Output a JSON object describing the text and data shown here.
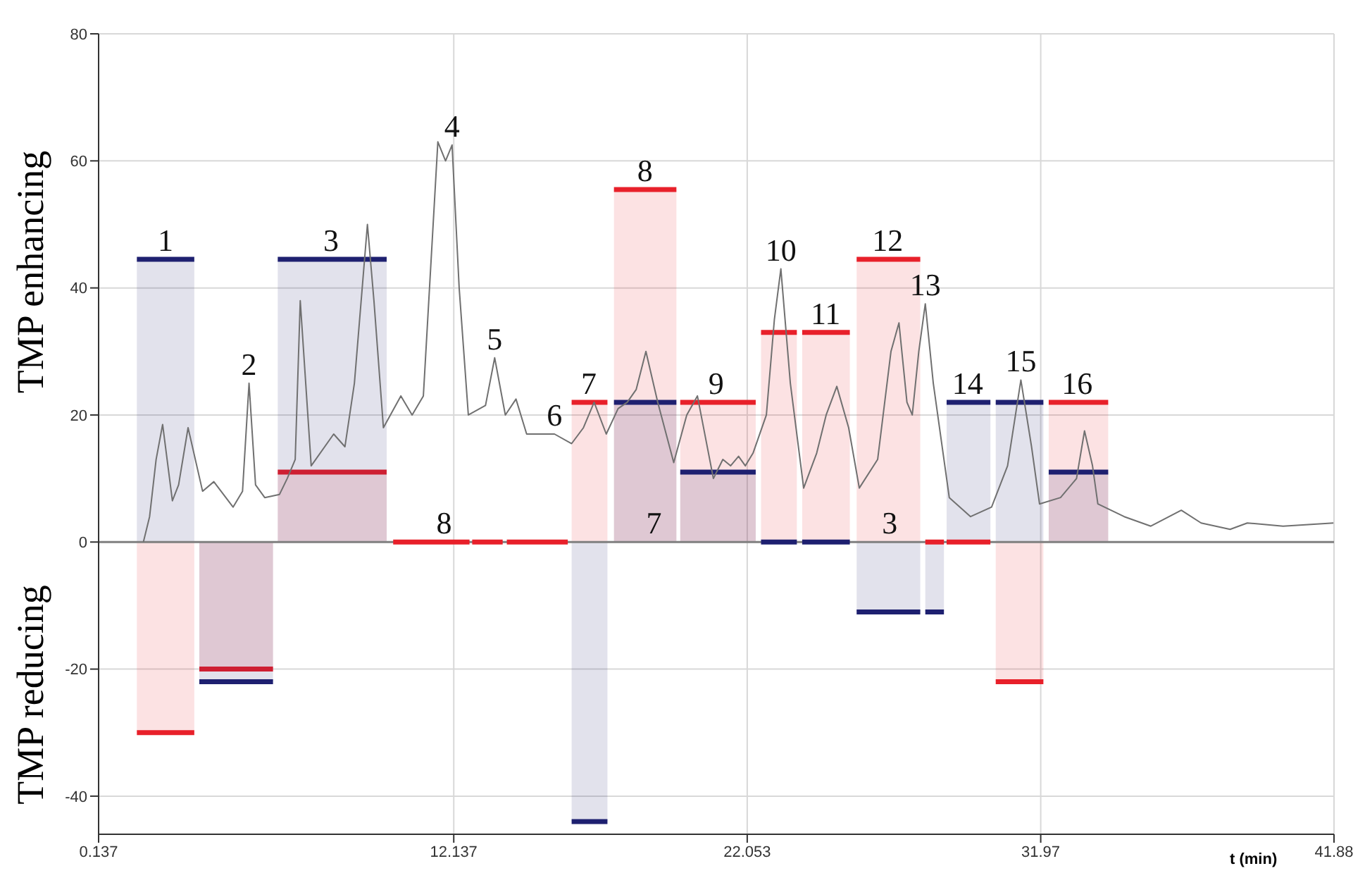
{
  "chart_data": {
    "type": "line",
    "xlabel": "t (min)",
    "ylabel": "TMP enhancing",
    "xlim": [
      0.137,
      41.88
    ],
    "xticks": [
      0.137,
      12.137,
      22.053,
      31.97,
      41.88
    ],
    "ylim": [
      -46,
      80
    ],
    "yticks": [
      -40,
      -20,
      0,
      20,
      40,
      60,
      80
    ],
    "grid": true,
    "legend": false,
    "marker": "none",
    "ref_lines": [
      {
        "axis": "y",
        "value": 0,
        "color": "#808080"
      }
    ],
    "series": [
      {
        "type": "line",
        "color": "#707070",
        "x": [
          1.65,
          1.86,
          2.08,
          2.3,
          2.63,
          2.84,
          3.16,
          3.65,
          4.03,
          4.68,
          5.0,
          5.22,
          5.44,
          5.75,
          6.25,
          6.51,
          6.78,
          6.95,
          7.32,
          8.08,
          8.46,
          8.78,
          9.22,
          9.44,
          9.76,
          10.35,
          10.73,
          11.11,
          11.6,
          11.86,
          12.08,
          12.32,
          12.63,
          13.21,
          13.52,
          13.88,
          14.24,
          14.6,
          15.54,
          16.12,
          16.52,
          16.88,
          17.29,
          17.69,
          18.0,
          18.3,
          18.63,
          19.03,
          19.57,
          20.01,
          20.37,
          20.91,
          21.23,
          21.49,
          21.76,
          21.99,
          22.25,
          22.7,
          22.97,
          23.19,
          23.51,
          23.96,
          24.4,
          24.72,
          25.08,
          25.48,
          25.84,
          26.46,
          26.91,
          27.18,
          27.45,
          27.63,
          27.85,
          28.07,
          28.34,
          28.88,
          29.6,
          30.31,
          30.85,
          31.3,
          31.66,
          31.93,
          32.64,
          33.18,
          33.45,
          33.72,
          33.9,
          34.79,
          35.69,
          36.72,
          37.39,
          38.37,
          38.95,
          40.16,
          41.86
        ],
        "values": [
          0,
          4,
          13,
          18.5,
          6.5,
          9,
          18,
          8,
          9.5,
          5.5,
          8,
          25,
          9,
          7,
          7.5,
          10,
          13,
          38,
          12,
          17,
          15,
          25,
          50,
          38,
          18,
          23,
          20,
          23,
          63,
          60,
          62.5,
          40,
          20,
          21.5,
          29,
          20,
          22.5,
          17,
          17,
          15.5,
          18,
          22,
          17,
          21,
          22,
          24,
          30,
          22,
          12.5,
          20,
          23,
          10,
          13,
          12,
          13.5,
          12,
          14,
          20,
          35,
          43,
          25,
          8.5,
          14,
          20,
          24.5,
          18,
          8.5,
          13,
          30,
          34.5,
          22,
          20,
          30,
          37.5,
          25,
          7,
          4,
          5.5,
          12,
          25.5,
          15,
          6,
          7,
          10,
          17.5,
          12,
          6,
          4,
          2.5,
          5,
          3,
          2,
          3,
          2.5,
          3
        ]
      },
      {
        "type": "area",
        "color": "#e8202a",
        "x": [
          1.43,
          3.37,
          3.46,
          3.54,
          6.03,
          6.11,
          6.19,
          9.87,
          9.98,
          16.12,
          17.33,
          17.44,
          17.55,
          19.66,
          19.72,
          19.79,
          22.34,
          22.43,
          22.52,
          23.73,
          23.82,
          23.91,
          25.52,
          25.63,
          25.75,
          27.9,
          27.98,
          30.45,
          32.06,
          32.15,
          32.24,
          34.25
        ],
        "values": [
          -30,
          -30,
          null,
          -20,
          -20,
          null,
          11,
          11,
          null,
          22,
          22,
          null,
          55.5,
          55.5,
          null,
          22,
          22,
          null,
          33,
          33,
          null,
          33,
          33,
          null,
          44.5,
          44.5,
          null,
          -22,
          -22,
          null,
          22,
          22
        ]
      },
      {
        "type": "area",
        "color": "#1e2070",
        "x": [
          1.43,
          3.37,
          3.46,
          3.54,
          6.03,
          6.11,
          6.19,
          9.87,
          13.0,
          16.12,
          17.33,
          17.44,
          17.55,
          19.66,
          19.72,
          19.79,
          22.34,
          22.43,
          25.75,
          27.9,
          27.98,
          28.07,
          28.7,
          28.74,
          28.79,
          30.27,
          30.36,
          30.45,
          32.06,
          32.15,
          32.24,
          34.25
        ],
        "values": [
          44.5,
          44.5,
          null,
          -22,
          -22,
          null,
          44.5,
          44.5,
          null,
          -44,
          -44,
          null,
          22,
          22,
          null,
          11,
          11,
          null,
          -11,
          -11,
          null,
          -11,
          -11,
          null,
          22,
          22,
          null,
          22,
          22,
          null,
          11,
          11
        ]
      },
      {
        "type": "step",
        "color": "#e8202a",
        "x": [
          10.09,
          12.67,
          12.71,
          12.76,
          13.79,
          13.86,
          13.93,
          15.99,
          16.05,
          28.07,
          28.7,
          28.74,
          28.79,
          30.27
        ],
        "values": [
          0,
          0,
          null,
          0,
          0,
          null,
          0,
          0,
          null,
          0,
          0,
          null,
          0,
          0
        ]
      },
      {
        "type": "step",
        "color": "#1e2070",
        "x": [
          22.52,
          23.73,
          23.82,
          23.91,
          25.52
        ],
        "values": [
          0,
          0,
          null,
          0,
          0
        ]
      }
    ],
    "annotations": [
      "TMP reducing",
      {
        "text": "1",
        "x": 2.4,
        "y": 44.5
      },
      {
        "text": "2",
        "x": 5.22,
        "y": 25
      },
      {
        "text": "3",
        "x": 7.99,
        "y": 44.5
      },
      {
        "text": "4",
        "x": 12.08,
        "y": 62.5
      },
      {
        "text": "5",
        "x": 13.52,
        "y": 29
      },
      {
        "text": "6",
        "x": 15.54,
        "y": 17
      },
      {
        "text": "7",
        "x": 16.7,
        "y": 22
      },
      {
        "text": "8",
        "x": 18.6,
        "y": 55.5
      },
      {
        "text": "9",
        "x": 21.0,
        "y": 22
      },
      {
        "text": "10",
        "x": 23.19,
        "y": 43
      },
      {
        "text": "11",
        "x": 24.7,
        "y": 33
      },
      {
        "text": "12",
        "x": 26.8,
        "y": 44.5
      },
      {
        "text": "13",
        "x": 28.07,
        "y": 37.5
      },
      {
        "text": "14",
        "x": 29.5,
        "y": 22
      },
      {
        "text": "15",
        "x": 31.3,
        "y": 25.5
      },
      {
        "text": "16",
        "x": 33.2,
        "y": 22
      },
      {
        "text": "8",
        "x": 11.81,
        "y": 0
      },
      {
        "text": "7",
        "x": 18.9,
        "y": 0
      },
      {
        "text": "3",
        "x": 26.87,
        "y": 0
      }
    ]
  }
}
